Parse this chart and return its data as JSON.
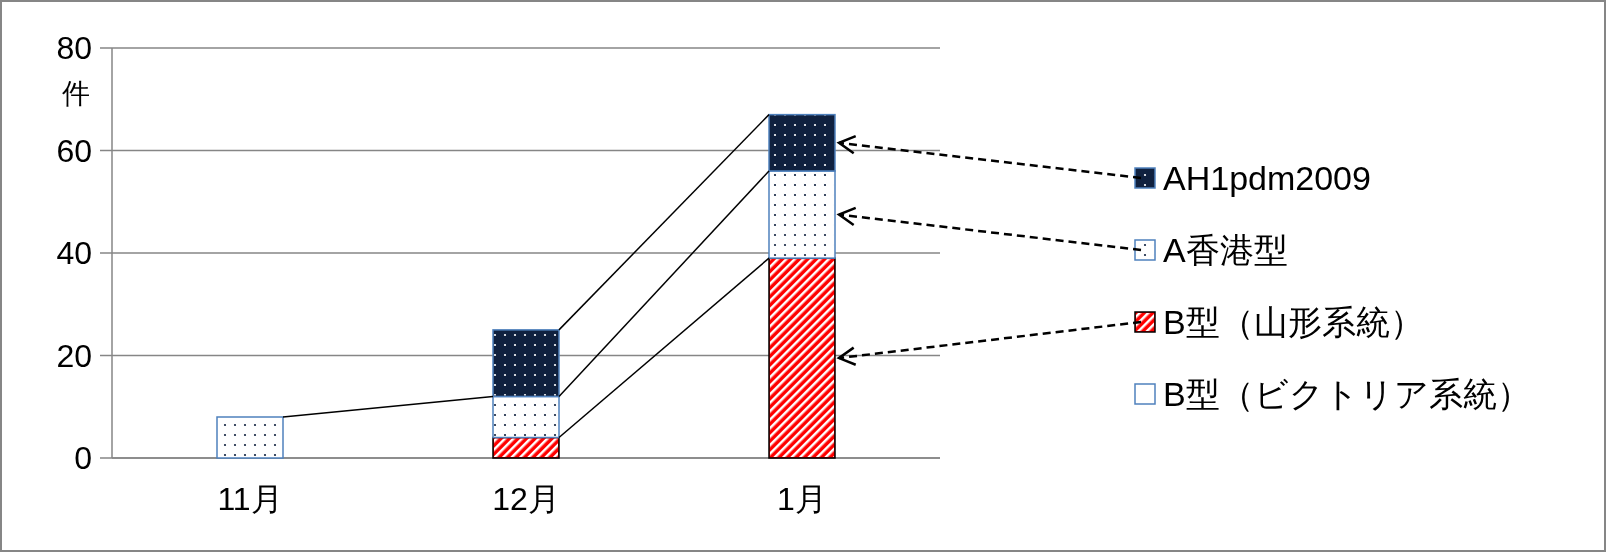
{
  "chart_data": {
    "type": "bar",
    "stacked": true,
    "ylabel": "件",
    "categories": [
      "11月",
      "12月",
      "1月"
    ],
    "ylim": [
      0,
      80
    ],
    "yticks": [
      0,
      20,
      40,
      60,
      80
    ],
    "grid": "y",
    "legend": "right",
    "series": [
      {
        "name": "B型（ビクトリア系統）",
        "color": "#ffffff",
        "values": [
          null,
          null,
          null
        ]
      },
      {
        "name": "B型（山形系統）",
        "color": "#ff0000",
        "values": [
          null,
          4,
          39
        ]
      },
      {
        "name": "A香港型",
        "color": "#ffffff",
        "values": [
          8,
          8,
          17
        ]
      },
      {
        "name": "AH1pdm2009",
        "color": "#10213f",
        "values": [
          null,
          13,
          11
        ]
      }
    ]
  }
}
